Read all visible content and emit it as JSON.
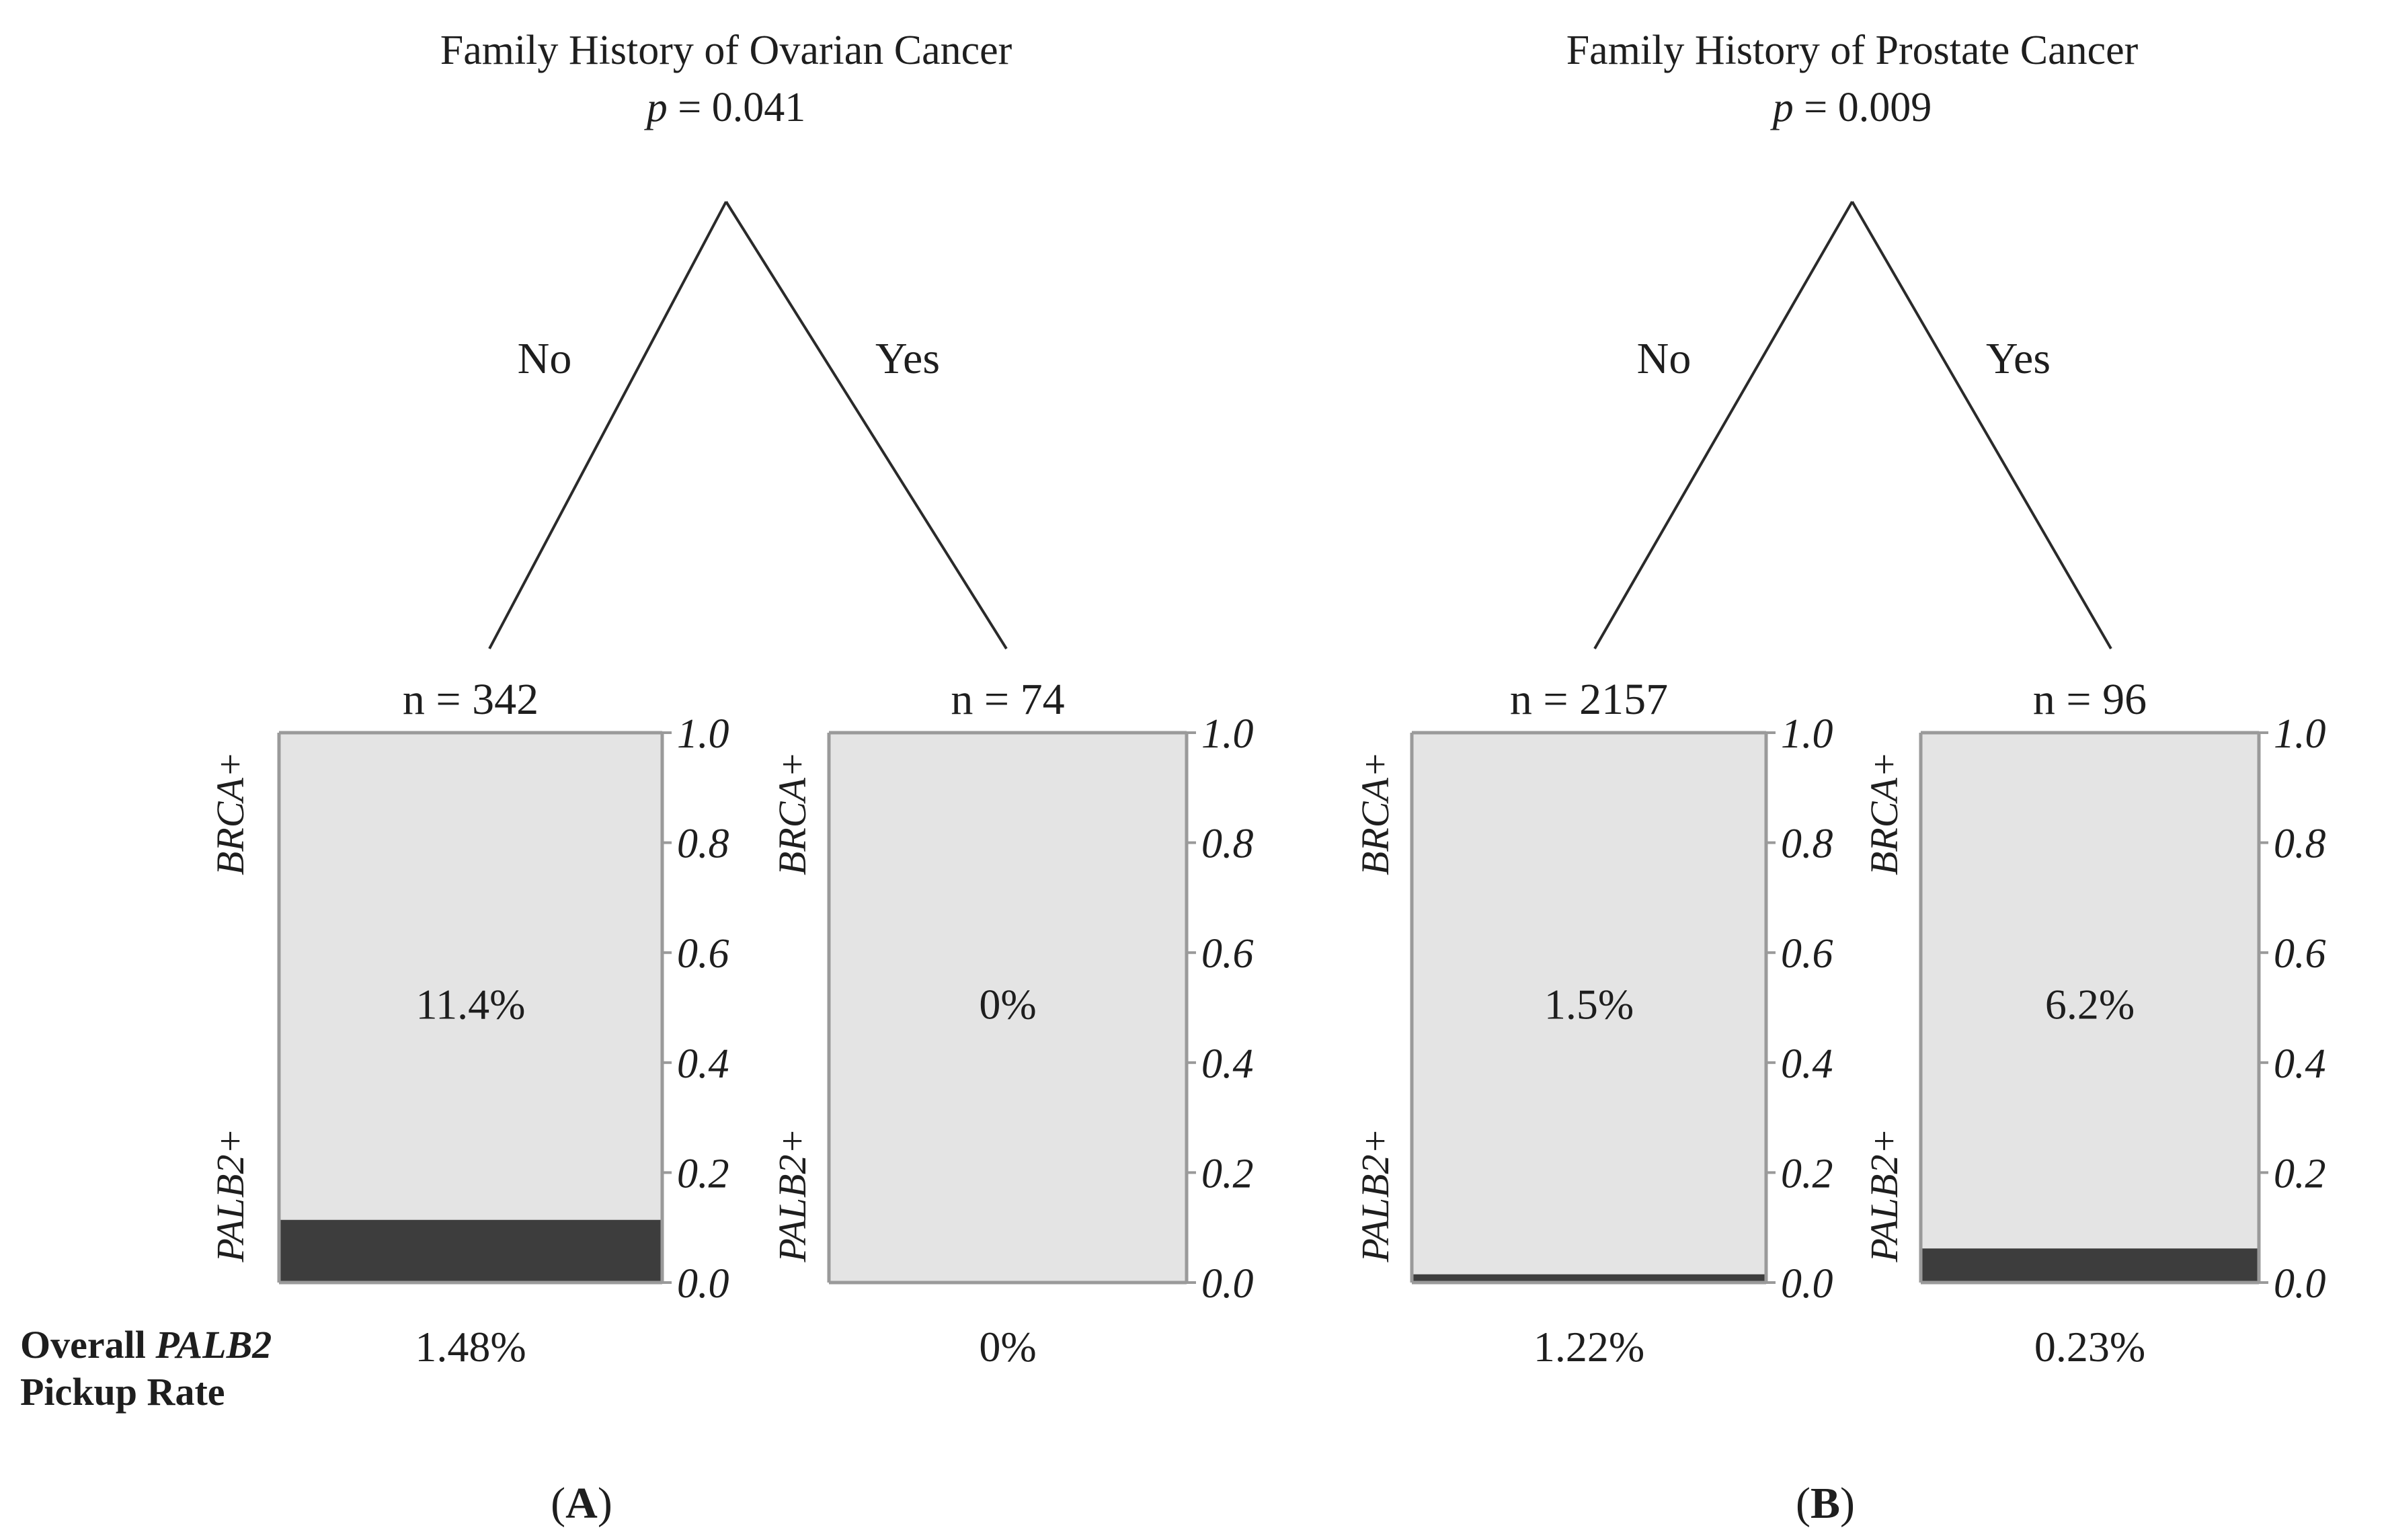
{
  "colors": {
    "upper": "#e4e4e4",
    "lower": "#3d3d3d",
    "frame": "#9a9a9a",
    "line": "#2a2a2a",
    "text": "#1e1e1e"
  },
  "footer": {
    "line1_prefix": "Overall ",
    "line1_gene": "PALB2",
    "line2": "Pickup Rate"
  },
  "chart_data": [
    {
      "type": "tree-stacked-bar",
      "panel_label": "A",
      "title": "Family History of Ovarian Cancer",
      "p_label": "p",
      "p_value": " = 0.041",
      "left_branch": "No",
      "right_branch": "Yes",
      "y_ticks": [
        "0.0",
        "0.2",
        "0.4",
        "0.6",
        "0.8",
        "1.0"
      ],
      "y_range": [
        0,
        1
      ],
      "bars": [
        {
          "n_label": "n = 342",
          "top_label": "BRCA+",
          "bottom_label": "PALB2+",
          "center_label": "11.4%",
          "palb2_fraction": 0.114,
          "overall_rate": "1.48%"
        },
        {
          "n_label": "n = 74",
          "top_label": "BRCA+",
          "bottom_label": "PALB2+",
          "center_label": "0%",
          "palb2_fraction": 0.0,
          "overall_rate": "0%"
        }
      ]
    },
    {
      "type": "tree-stacked-bar",
      "panel_label": "B",
      "title": "Family History of Prostate Cancer",
      "p_label": "p",
      "p_value": " = 0.009",
      "left_branch": "No",
      "right_branch": "Yes",
      "y_ticks": [
        "0.0",
        "0.2",
        "0.4",
        "0.6",
        "0.8",
        "1.0"
      ],
      "y_range": [
        0,
        1
      ],
      "bars": [
        {
          "n_label": "n = 2157",
          "top_label": "BRCA+",
          "bottom_label": "PALB2+",
          "center_label": "1.5%",
          "palb2_fraction": 0.015,
          "overall_rate": "1.22%"
        },
        {
          "n_label": "n = 96",
          "top_label": "BRCA+",
          "bottom_label": "PALB2+",
          "center_label": "6.2%",
          "palb2_fraction": 0.062,
          "overall_rate": "0.23%"
        }
      ]
    }
  ]
}
